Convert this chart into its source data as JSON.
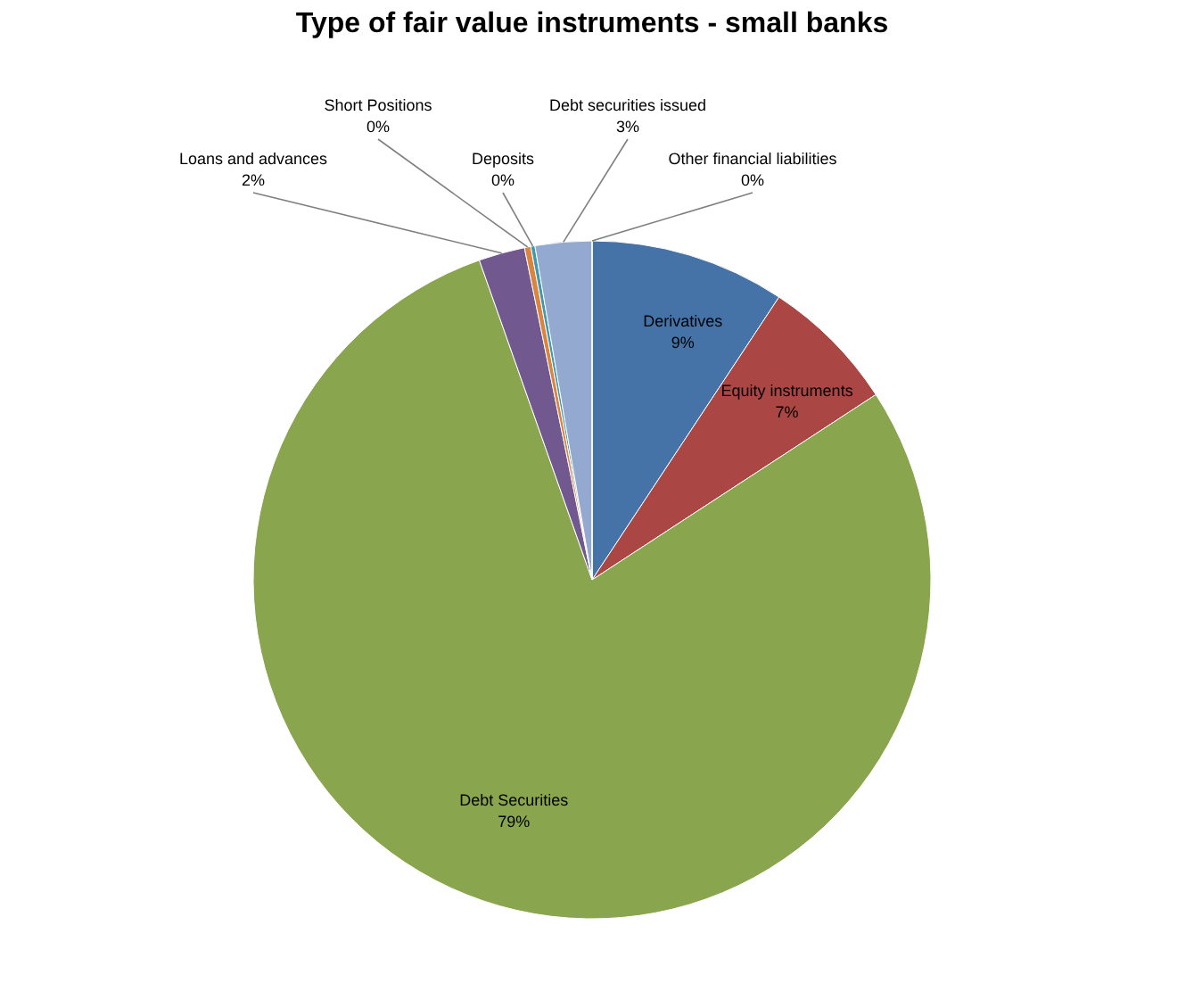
{
  "chart_data": {
    "type": "pie",
    "title": "Type of fair value instruments - small banks",
    "categories": [
      "Derivatives",
      "Equity instruments",
      "Debt Securities",
      "Loans and advances",
      "Short Positions",
      "Deposits",
      "Debt securities issued",
      "Other financial liabilities"
    ],
    "values": [
      9.3,
      6.5,
      78.8,
      2.2,
      0.3,
      0.2,
      2.7,
      0
    ],
    "value_labels": [
      "9%",
      "7%",
      "79%",
      "2%",
      "0%",
      "0%",
      "3%",
      "0%"
    ],
    "colors": [
      "#4572a7",
      "#aa4643",
      "#89a54e",
      "#71588f",
      "#db843d",
      "#4198af",
      "#93a9cf",
      "#b9cde5"
    ],
    "legend": false
  }
}
